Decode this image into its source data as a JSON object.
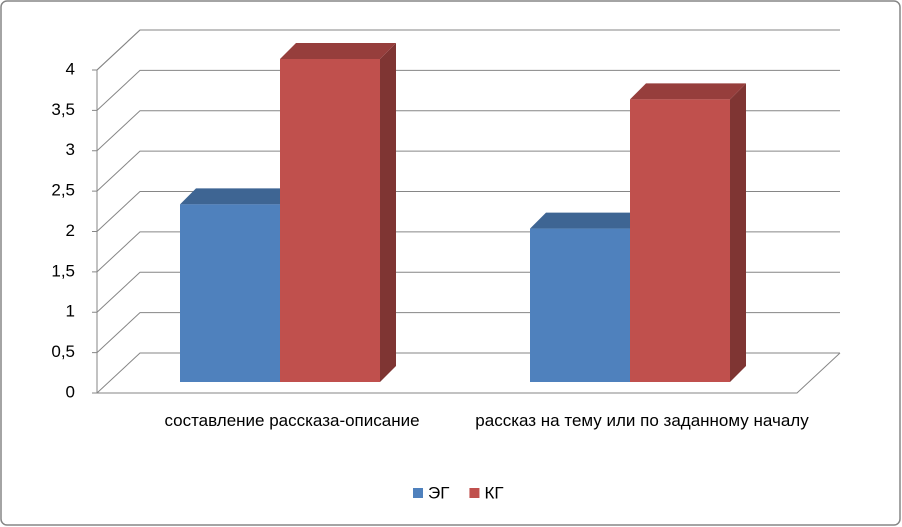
{
  "chart_data": {
    "type": "bar3d",
    "categories": [
      "составление рассказа-описание",
      "рассказ на тему или по заданному началу"
    ],
    "series": [
      {
        "name": "ЭГ",
        "color": "#4f81bd",
        "values": [
          2.2,
          1.9
        ]
      },
      {
        "name": "КГ",
        "color": "#c0504d",
        "values": [
          4,
          3.5
        ]
      }
    ],
    "ylim": [
      0,
      4
    ],
    "yticks": [
      0,
      {
        "value": 0.5,
        "label": "0,5"
      },
      1,
      {
        "value": 1.5,
        "label": "1,5"
      },
      2,
      {
        "value": 2.5,
        "label": "2,5"
      },
      3,
      {
        "value": 3.5,
        "label": "3,5"
      },
      4
    ],
    "grid": true,
    "legend": "bottom"
  }
}
